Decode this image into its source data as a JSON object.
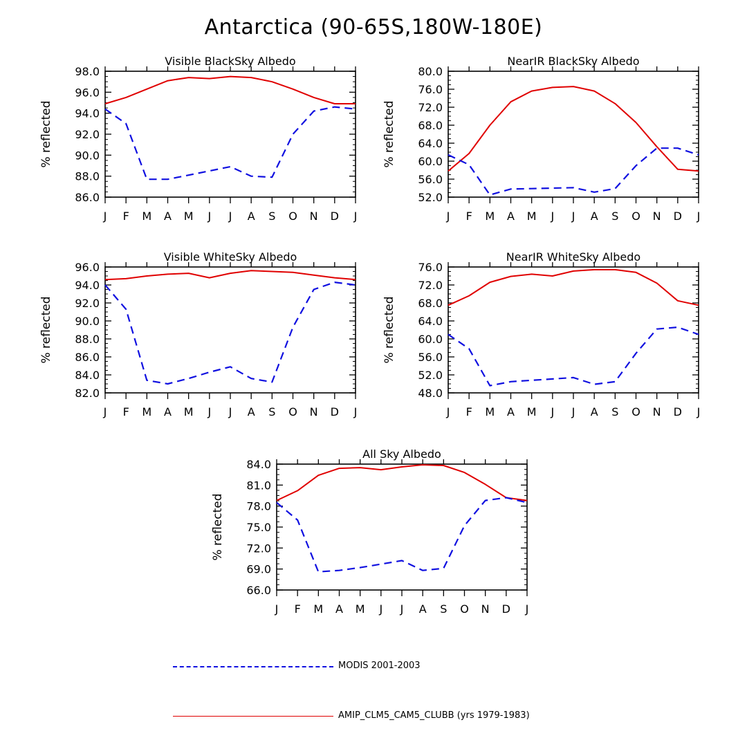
{
  "title": "Antarctica (90-65S,180W-180E)",
  "colors": {
    "modis": "#1010e0",
    "model": "#e00000",
    "axis": "#000000"
  },
  "legend": {
    "modis_label": "MODIS 2001-2003",
    "model_label": "AMIP_CLM5_CAM5_CLUBB (yrs 1979-1983)"
  },
  "chart_data": [
    {
      "type": "line",
      "title": "Visible BlackSky Albedo",
      "ylabel": "% reflected",
      "xlabel": "",
      "categories": [
        "J",
        "F",
        "M",
        "A",
        "M",
        "J",
        "J",
        "A",
        "S",
        "O",
        "N",
        "D",
        "J"
      ],
      "ylim": [
        86.0,
        98.0
      ],
      "yticks": [
        "86.0",
        "88.0",
        "90.0",
        "92.0",
        "94.0",
        "96.0",
        "98.0"
      ],
      "series": [
        {
          "name": "AMIP_CLM5_CAM5_CLUBB (yrs 1979-1983)",
          "style": "solid",
          "values": [
            94.9,
            95.5,
            96.3,
            97.1,
            97.4,
            97.3,
            97.5,
            97.4,
            97.0,
            96.3,
            95.5,
            94.9,
            94.9
          ]
        },
        {
          "name": "MODIS 2001-2003",
          "style": "dashed",
          "values": [
            94.4,
            93.0,
            87.7,
            87.7,
            88.1,
            88.5,
            88.9,
            88.0,
            87.9,
            92.0,
            94.2,
            94.6,
            94.4
          ]
        }
      ]
    },
    {
      "type": "line",
      "title": "NearIR BlackSky Albedo",
      "ylabel": "% reflected",
      "xlabel": "",
      "categories": [
        "J",
        "F",
        "M",
        "A",
        "M",
        "J",
        "J",
        "A",
        "S",
        "O",
        "N",
        "D",
        "J"
      ],
      "ylim": [
        52.0,
        80.0
      ],
      "yticks": [
        "52.0",
        "56.0",
        "60.0",
        "64.0",
        "68.0",
        "72.0",
        "76.0",
        "80.0"
      ],
      "series": [
        {
          "name": "AMIP_CLM5_CAM5_CLUBB (yrs 1979-1983)",
          "style": "solid",
          "values": [
            57.8,
            61.7,
            68.0,
            73.2,
            75.6,
            76.4,
            76.6,
            75.6,
            72.8,
            68.6,
            63.2,
            58.2,
            57.8
          ]
        },
        {
          "name": "MODIS 2001-2003",
          "style": "dashed",
          "values": [
            61.4,
            59.2,
            52.5,
            53.8,
            53.9,
            54.0,
            54.1,
            53.1,
            53.9,
            59.0,
            62.9,
            62.9,
            61.4
          ]
        }
      ]
    },
    {
      "type": "line",
      "title": "Visible WhiteSky Albedo",
      "ylabel": "% reflected",
      "xlabel": "",
      "categories": [
        "J",
        "F",
        "M",
        "A",
        "M",
        "J",
        "J",
        "A",
        "S",
        "O",
        "N",
        "D",
        "J"
      ],
      "ylim": [
        82.0,
        96.0
      ],
      "yticks": [
        "82.0",
        "84.0",
        "86.0",
        "88.0",
        "90.0",
        "92.0",
        "94.0",
        "96.0"
      ],
      "series": [
        {
          "name": "AMIP_CLM5_CAM5_CLUBB (yrs 1979-1983)",
          "style": "solid",
          "values": [
            94.6,
            94.7,
            95.0,
            95.2,
            95.3,
            94.8,
            95.3,
            95.6,
            95.5,
            95.4,
            95.1,
            94.8,
            94.6
          ]
        },
        {
          "name": "MODIS 2001-2003",
          "style": "dashed",
          "values": [
            94.0,
            91.3,
            83.4,
            83.0,
            83.6,
            84.3,
            84.9,
            83.6,
            83.2,
            89.3,
            93.5,
            94.3,
            94.0
          ]
        }
      ]
    },
    {
      "type": "line",
      "title": "NearIR WhiteSky Albedo",
      "ylabel": "% reflected",
      "xlabel": "",
      "categories": [
        "J",
        "F",
        "M",
        "A",
        "M",
        "J",
        "J",
        "A",
        "S",
        "O",
        "N",
        "D",
        "J"
      ],
      "ylim": [
        48.0,
        76.0
      ],
      "yticks": [
        "48.0",
        "52.0",
        "56.0",
        "60.0",
        "64.0",
        "68.0",
        "72.0",
        "76.0"
      ],
      "series": [
        {
          "name": "AMIP_CLM5_CAM5_CLUBB (yrs 1979-1983)",
          "style": "solid",
          "values": [
            67.5,
            69.6,
            72.6,
            73.9,
            74.4,
            74.0,
            75.1,
            75.4,
            75.4,
            74.8,
            72.4,
            68.5,
            67.5
          ]
        },
        {
          "name": "MODIS 2001-2003",
          "style": "dashed",
          "values": [
            61.0,
            57.8,
            49.6,
            50.5,
            50.8,
            51.1,
            51.4,
            49.9,
            50.5,
            56.8,
            62.2,
            62.6,
            61.0
          ]
        }
      ]
    },
    {
      "type": "line",
      "title": "All Sky Albedo",
      "ylabel": "% reflected",
      "xlabel": "",
      "categories": [
        "J",
        "F",
        "M",
        "A",
        "M",
        "J",
        "J",
        "A",
        "S",
        "O",
        "N",
        "D",
        "J"
      ],
      "ylim": [
        66.0,
        84.0
      ],
      "yticks": [
        "66.0",
        "69.0",
        "72.0",
        "75.0",
        "78.0",
        "81.0",
        "84.0"
      ],
      "series": [
        {
          "name": "AMIP_CLM5_CAM5_CLUBB (yrs 1979-1983)",
          "style": "solid",
          "values": [
            78.8,
            80.2,
            82.4,
            83.4,
            83.5,
            83.2,
            83.6,
            83.9,
            83.8,
            82.8,
            81.1,
            79.2,
            78.8
          ]
        },
        {
          "name": "MODIS 2001-2003",
          "style": "dashed",
          "values": [
            78.5,
            76.0,
            68.6,
            68.8,
            69.2,
            69.7,
            70.2,
            68.8,
            69.1,
            75.2,
            78.8,
            79.2,
            78.5
          ]
        }
      ]
    }
  ]
}
